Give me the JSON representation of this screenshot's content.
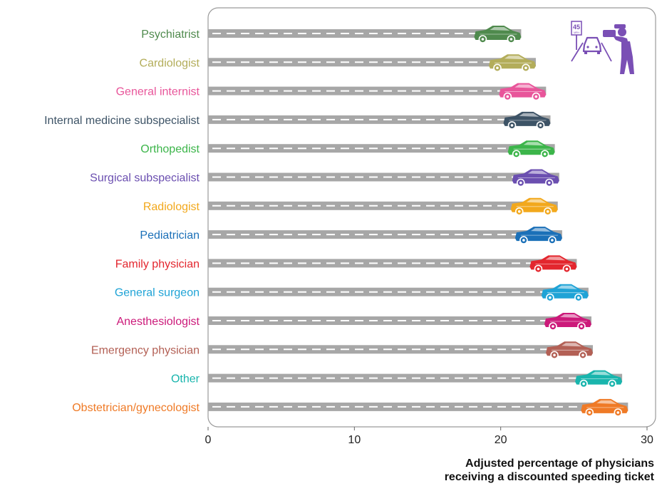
{
  "chart_data": {
    "type": "bar",
    "categories": [
      "Psychiatrist",
      "Cardiologist",
      "General internist",
      "Internal medicine subspecialist",
      "Orthopedist",
      "Surgical subspecialist",
      "Radiologist",
      "Pediatrician",
      "Family physician",
      "General surgeon",
      "Anesthesiologist",
      "Emergency physician",
      "Other",
      "Obstetrician/gynecologist"
    ],
    "values": [
      21.4,
      22.4,
      23.1,
      23.4,
      23.7,
      24.0,
      23.9,
      24.2,
      25.2,
      26.0,
      26.2,
      26.3,
      28.3,
      28.7
    ],
    "colors": [
      "#4f8a4d",
      "#b3ad5a",
      "#e8559a",
      "#3d5366",
      "#3cb54a",
      "#6b4fb0",
      "#f2a81c",
      "#1b70b8",
      "#e3262e",
      "#1fa3d6",
      "#cc1a7a",
      "#b36055",
      "#19b5ad",
      "#ef7a26"
    ],
    "xticks": [
      0,
      10,
      20,
      30
    ],
    "xlim": [
      0,
      30
    ],
    "xlabel_lines": [
      "Adjusted percentage of physicians",
      "receiving a discounted speeding ticket"
    ],
    "road_color": "#a7a7a7",
    "icon": "police-speed-camera-icon",
    "sign_text": "45",
    "sign_subtext": "MPH",
    "icon_color": "#7a4fb5"
  }
}
